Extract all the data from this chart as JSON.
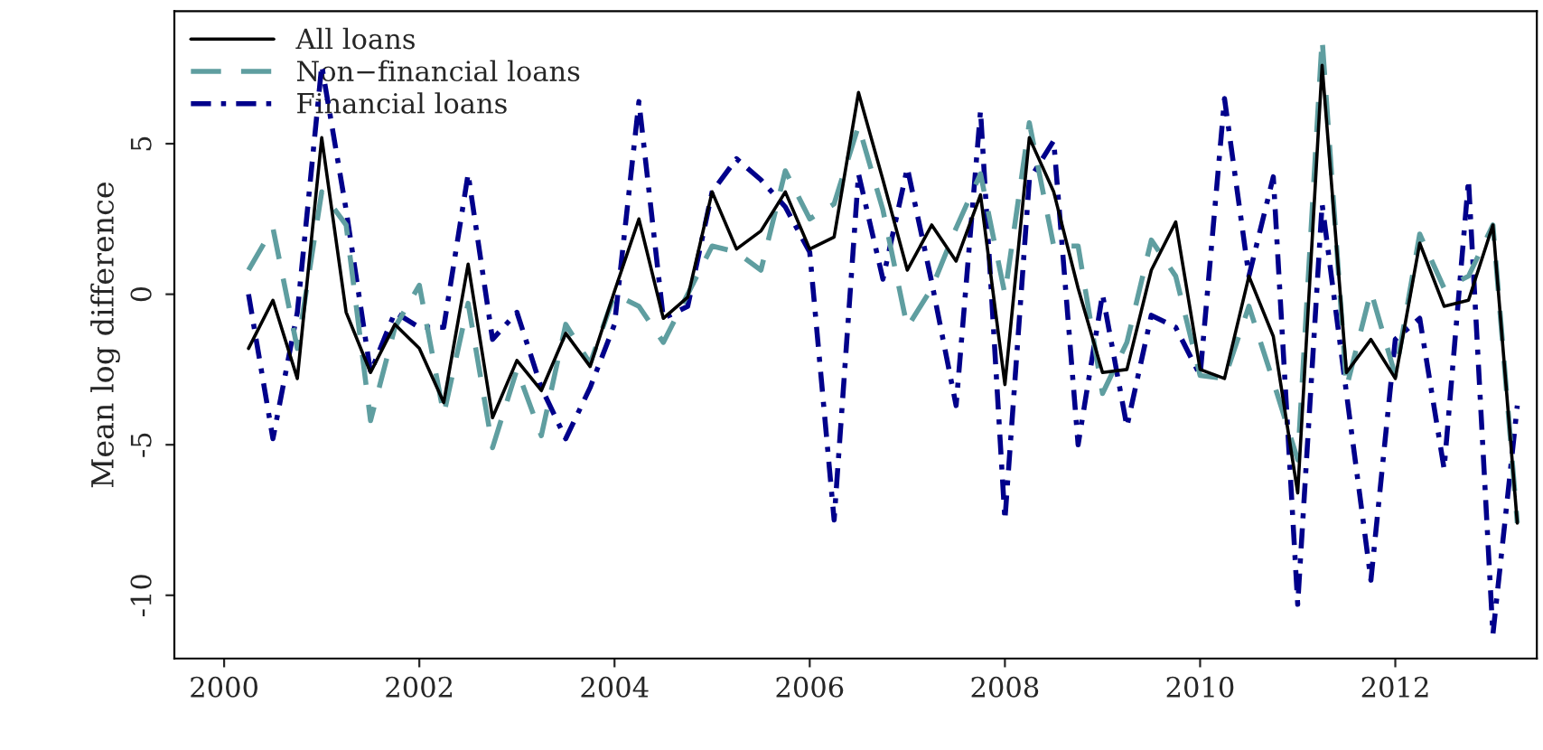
{
  "chart_data": {
    "type": "line",
    "ylabel": "Mean log difference",
    "x": [
      2000.25,
      2000.5,
      2000.75,
      2001,
      2001.25,
      2001.5,
      2001.75,
      2002,
      2002.25,
      2002.5,
      2002.75,
      2003,
      2003.25,
      2003.5,
      2003.75,
      2004,
      2004.25,
      2004.5,
      2004.75,
      2005,
      2005.25,
      2005.5,
      2005.75,
      2006,
      2006.25,
      2006.5,
      2006.75,
      2007,
      2007.25,
      2007.5,
      2007.75,
      2008,
      2008.25,
      2008.5,
      2008.75,
      2009,
      2009.25,
      2009.5,
      2009.75,
      2010,
      2010.25,
      2010.5,
      2010.75,
      2011,
      2011.25,
      2011.5,
      2011.75,
      2012,
      2012.25,
      2012.5,
      2012.75,
      2013,
      2013.25
    ],
    "series": [
      {
        "name": "All loans",
        "color": "#000000",
        "line_style": "solid",
        "values": [
          -1.8,
          -0.2,
          -2.8,
          5.2,
          -0.6,
          -2.6,
          -1.0,
          -1.8,
          -3.6,
          1.0,
          -4.1,
          -2.2,
          -3.2,
          -1.3,
          -2.4,
          0.1,
          2.5,
          -0.8,
          -0.1,
          3.4,
          1.5,
          2.1,
          3.4,
          1.5,
          1.9,
          6.7,
          3.8,
          0.8,
          2.3,
          1.1,
          3.3,
          -3.0,
          5.2,
          3.4,
          0.2,
          -2.6,
          -2.5,
          0.8,
          2.4,
          -2.5,
          -2.8,
          0.6,
          -1.4,
          -6.6,
          7.6,
          -2.6,
          -1.5,
          -2.8,
          1.7,
          -0.4,
          -0.2,
          2.3,
          -7.6
        ]
      },
      {
        "name": "Non−financial loans",
        "color": "#5f9ea0",
        "line_style": "dashed",
        "values": [
          0.8,
          2.2,
          -1.8,
          3.4,
          2.3,
          -4.2,
          -1.1,
          0.3,
          -4.0,
          -0.3,
          -5.1,
          -2.5,
          -4.7,
          -1.0,
          -2.3,
          0.0,
          -0.4,
          -1.6,
          0.0,
          1.6,
          1.4,
          0.8,
          4.1,
          2.5,
          3.0,
          5.6,
          2.8,
          -1.1,
          0.2,
          2.2,
          4.0,
          0.0,
          5.7,
          1.6,
          1.6,
          -3.3,
          -1.6,
          1.8,
          0.6,
          -2.7,
          -2.8,
          -0.4,
          -2.9,
          -5.5,
          8.5,
          -3.1,
          0.1,
          -2.7,
          2.0,
          0.2,
          0.6,
          2.3,
          -7.6
        ]
      },
      {
        "name": "Financial loans",
        "color": "#00008b",
        "line_style": "dashdot",
        "values": [
          0.0,
          -4.8,
          -0.6,
          7.6,
          2.8,
          -2.6,
          -0.6,
          -1.1,
          -1.1,
          4.0,
          -1.5,
          -0.6,
          -3.1,
          -4.8,
          -3.1,
          -1.0,
          6.4,
          -0.8,
          -0.4,
          3.4,
          4.5,
          3.8,
          2.9,
          1.4,
          -7.5,
          4.0,
          0.5,
          4.2,
          0.4,
          -3.7,
          6.1,
          -7.5,
          3.8,
          5.1,
          -5.0,
          0.0,
          -4.4,
          -0.7,
          -1.1,
          -2.7,
          6.5,
          0.6,
          3.9,
          -10.3,
          3.0,
          -3.3,
          -9.5,
          -1.5,
          -0.8,
          -5.8,
          3.8,
          -11.3,
          -3.7
        ]
      }
    ],
    "xlim": [
      1999.49,
      2013.45
    ],
    "ylim": [
      -12.1,
      9.4
    ],
    "xticks": [
      2000,
      2002,
      2004,
      2006,
      2008,
      2010,
      2012
    ],
    "yticks": [
      -10,
      -5,
      0,
      5
    ],
    "grid": false,
    "legend": "top left"
  }
}
